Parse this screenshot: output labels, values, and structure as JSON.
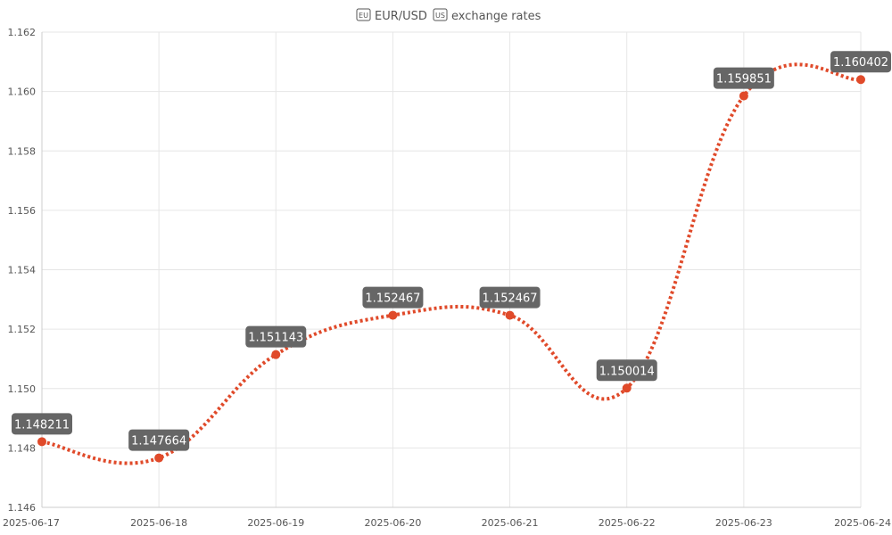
{
  "chart_data": {
    "type": "line",
    "title": "EUR/USD exchange rates",
    "title_icons": [
      "eu-flag-icon",
      "us-flag-icon"
    ],
    "title_parts": {
      "pair": "EUR/USD",
      "rest": "exchange rates"
    },
    "xlabel": "",
    "ylabel": "",
    "x": [
      "2025-06-17",
      "2025-06-18",
      "2025-06-19",
      "2025-06-20",
      "2025-06-21",
      "2025-06-22",
      "2025-06-23",
      "2025-06-24"
    ],
    "series": [
      {
        "values": [
          1.148211,
          1.147664,
          1.151143,
          1.152467,
          1.152467,
          1.150014,
          1.159851,
          1.160402
        ],
        "data_labels": [
          "1.148211",
          "1.147664",
          "1.151143",
          "1.152467",
          "1.152467",
          "1.150014",
          "1.159851",
          "1.160402"
        ],
        "color": "#e04a2a",
        "line_style": "dotted",
        "smooth": true
      }
    ],
    "ylim": [
      1.146,
      1.162
    ],
    "yticks": [
      "1.146",
      "1.148",
      "1.150",
      "1.152",
      "1.154",
      "1.156",
      "1.158",
      "1.160",
      "1.162"
    ],
    "grid": true,
    "legend": "none",
    "colors": {
      "line": "#e04a2a",
      "grid": "#e6e6e6",
      "label_bg": "#666666",
      "label_text": "#ffffff",
      "text": "#555555"
    }
  }
}
